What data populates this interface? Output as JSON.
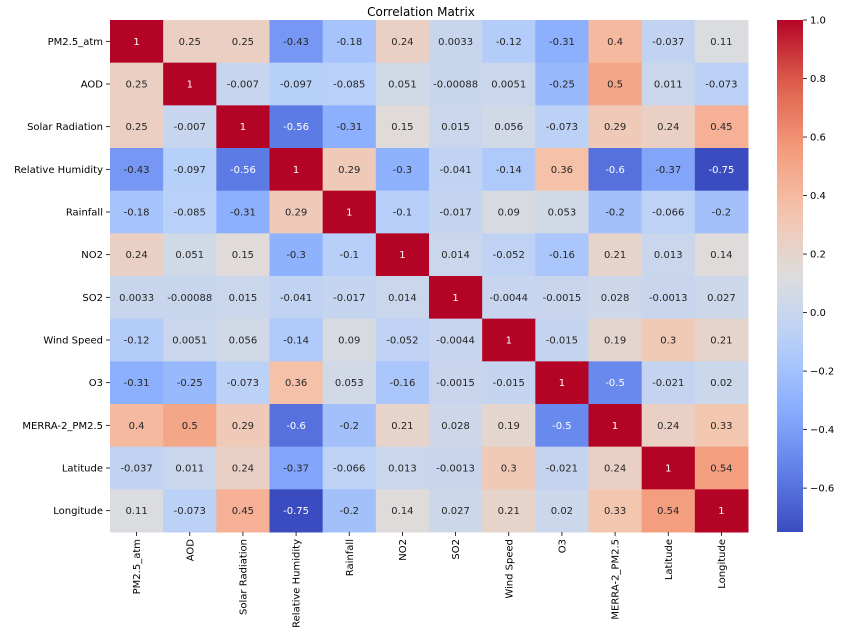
{
  "chart_data": {
    "type": "heatmap",
    "title": "Correlation Matrix",
    "colormap": "coolwarm",
    "labels": [
      "PM2.5_atm",
      "AOD",
      "Solar Radiation",
      "Relative Humidity",
      "Rainfall",
      "NO2",
      "SO2",
      "Wind Speed",
      "O3",
      "MERRA-2_PM2.5",
      "Latitude",
      "Longitude"
    ],
    "values": [
      [
        1,
        0.25,
        0.25,
        -0.43,
        -0.18,
        0.24,
        0.0033,
        -0.12,
        -0.31,
        0.4,
        -0.037,
        0.11
      ],
      [
        0.25,
        1,
        -0.007,
        -0.097,
        -0.085,
        0.051,
        -0.00088,
        0.0051,
        -0.25,
        0.5,
        0.011,
        -0.073
      ],
      [
        0.25,
        -0.007,
        1,
        -0.56,
        -0.31,
        0.15,
        0.015,
        0.056,
        -0.073,
        0.29,
        0.24,
        0.45
      ],
      [
        -0.43,
        -0.097,
        -0.56,
        1,
        0.29,
        -0.3,
        -0.041,
        -0.14,
        0.36,
        -0.6,
        -0.37,
        -0.75
      ],
      [
        -0.18,
        -0.085,
        -0.31,
        0.29,
        1,
        -0.1,
        -0.017,
        0.09,
        0.053,
        -0.2,
        -0.066,
        -0.2
      ],
      [
        0.24,
        0.051,
        0.15,
        -0.3,
        -0.1,
        1,
        0.014,
        -0.052,
        -0.16,
        0.21,
        0.013,
        0.14
      ],
      [
        0.0033,
        -0.00088,
        0.015,
        -0.041,
        -0.017,
        0.014,
        1,
        -0.0044,
        -0.0015,
        0.028,
        -0.0013,
        0.027
      ],
      [
        -0.12,
        0.0051,
        0.056,
        -0.14,
        0.09,
        -0.052,
        -0.0044,
        1,
        -0.015,
        0.19,
        0.3,
        0.21
      ],
      [
        -0.31,
        -0.25,
        -0.073,
        0.36,
        0.053,
        -0.16,
        -0.0015,
        -0.015,
        1,
        -0.5,
        -0.021,
        0.02
      ],
      [
        0.4,
        0.5,
        0.29,
        -0.6,
        -0.2,
        0.21,
        0.028,
        0.19,
        -0.5,
        1,
        0.24,
        0.33
      ],
      [
        -0.037,
        0.011,
        0.24,
        -0.37,
        -0.066,
        0.013,
        -0.0013,
        0.3,
        -0.021,
        0.24,
        1,
        0.54
      ],
      [
        0.11,
        -0.073,
        0.45,
        -0.75,
        -0.2,
        0.14,
        0.027,
        0.21,
        0.02,
        0.33,
        0.54,
        1
      ]
    ],
    "display": [
      [
        "1",
        "0.25",
        "0.25",
        "-0.43",
        "-0.18",
        "0.24",
        "0.0033",
        "-0.12",
        "-0.31",
        "0.4",
        "-0.037",
        "0.11"
      ],
      [
        "0.25",
        "1",
        "-0.007",
        "-0.097",
        "-0.085",
        "0.051",
        "-0.00088",
        "0.0051",
        "-0.25",
        "0.5",
        "0.011",
        "-0.073"
      ],
      [
        "0.25",
        "-0.007",
        "1",
        "-0.56",
        "-0.31",
        "0.15",
        "0.015",
        "0.056",
        "-0.073",
        "0.29",
        "0.24",
        "0.45"
      ],
      [
        "-0.43",
        "-0.097",
        "-0.56",
        "1",
        "0.29",
        "-0.3",
        "-0.041",
        "-0.14",
        "0.36",
        "-0.6",
        "-0.37",
        "-0.75"
      ],
      [
        "-0.18",
        "-0.085",
        "-0.31",
        "0.29",
        "1",
        "-0.1",
        "-0.017",
        "0.09",
        "0.053",
        "-0.2",
        "-0.066",
        "-0.2"
      ],
      [
        "0.24",
        "0.051",
        "0.15",
        "-0.3",
        "-0.1",
        "1",
        "0.014",
        "-0.052",
        "-0.16",
        "0.21",
        "0.013",
        "0.14"
      ],
      [
        "0.0033",
        "-0.00088",
        "0.015",
        "-0.041",
        "-0.017",
        "0.014",
        "1",
        "-0.0044",
        "-0.0015",
        "0.028",
        "-0.0013",
        "0.027"
      ],
      [
        "-0.12",
        "0.0051",
        "0.056",
        "-0.14",
        "0.09",
        "-0.052",
        "-0.0044",
        "1",
        "-0.015",
        "0.19",
        "0.3",
        "0.21"
      ],
      [
        "-0.31",
        "-0.25",
        "-0.073",
        "0.36",
        "0.053",
        "-0.16",
        "-0.0015",
        "-0.015",
        "1",
        "-0.5",
        "-0.021",
        "0.02"
      ],
      [
        "0.4",
        "0.5",
        "0.29",
        "-0.6",
        "-0.2",
        "0.21",
        "0.028",
        "0.19",
        "-0.5",
        "1",
        "0.24",
        "0.33"
      ],
      [
        "-0.037",
        "0.011",
        "0.24",
        "-0.37",
        "-0.066",
        "0.013",
        "-0.0013",
        "0.3",
        "-0.021",
        "0.24",
        "1",
        "0.54"
      ],
      [
        "0.11",
        "-0.073",
        "0.45",
        "-0.75",
        "-0.2",
        "0.14",
        "0.027",
        "0.21",
        "0.02",
        "0.33",
        "0.54",
        "1"
      ]
    ],
    "colorbar": {
      "range": [
        -0.75,
        1
      ],
      "ticks": [
        1.0,
        0.8,
        0.6,
        0.4,
        0.2,
        0.0,
        -0.2,
        -0.4,
        -0.6
      ],
      "tick_labels": [
        "1.0",
        "0.8",
        "0.6",
        "0.4",
        "0.2",
        "0.0",
        "−0.2",
        "−0.4",
        "−0.6"
      ]
    },
    "grid": false,
    "legend": "colorbar-right"
  }
}
